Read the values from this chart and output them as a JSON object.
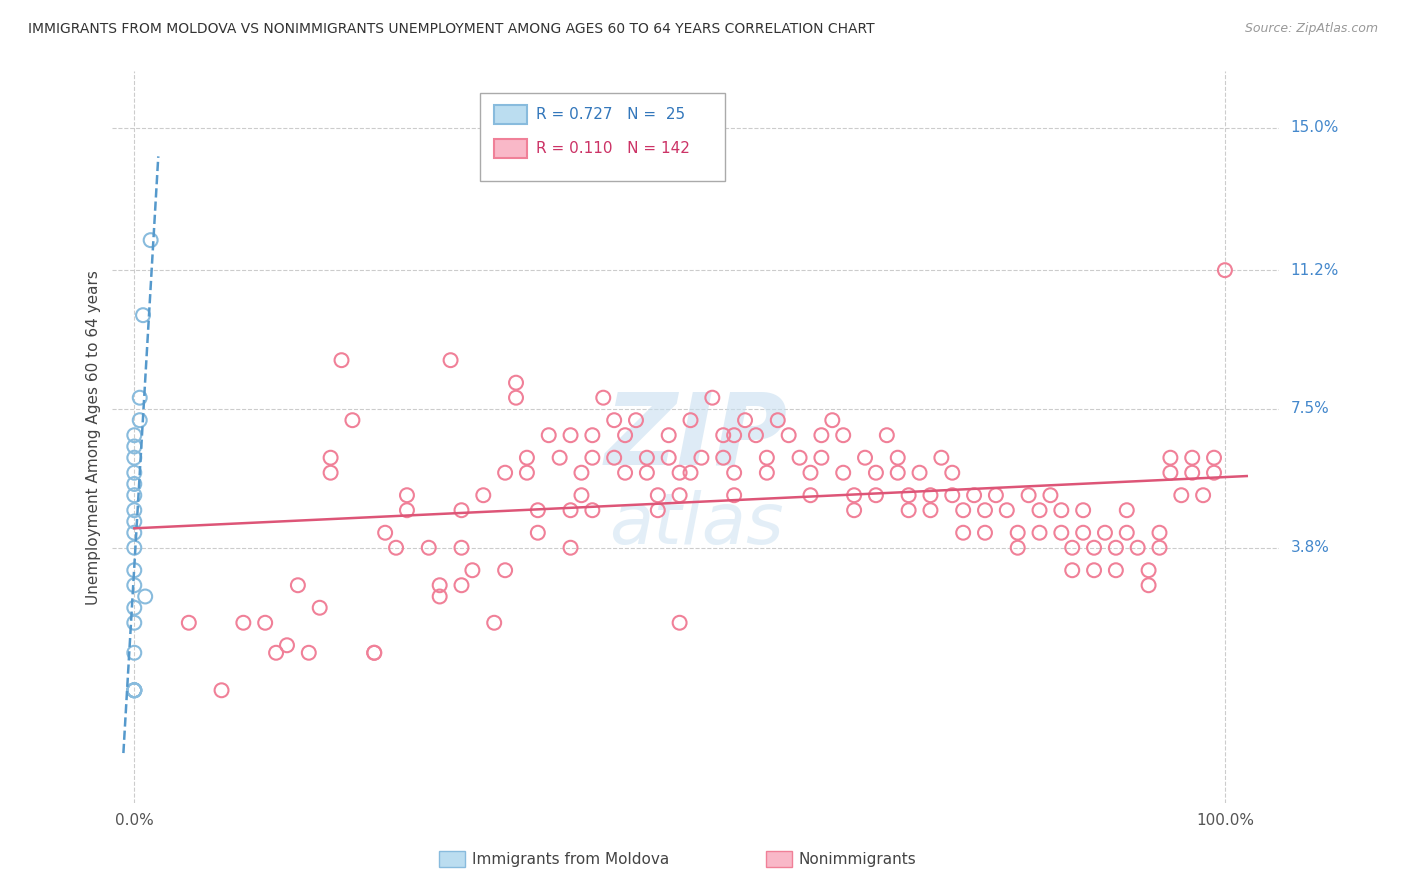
{
  "title": "IMMIGRANTS FROM MOLDOVA VS NONIMMIGRANTS UNEMPLOYMENT AMONG AGES 60 TO 64 YEARS CORRELATION CHART",
  "source": "Source: ZipAtlas.com",
  "ylabel": "Unemployment Among Ages 60 to 64 years",
  "xlim": [
    -0.02,
    1.05
  ],
  "ylim": [
    -0.03,
    0.165
  ],
  "ytick_labels": [
    "3.8%",
    "7.5%",
    "11.2%",
    "15.0%"
  ],
  "ytick_positions": [
    0.038,
    0.075,
    0.112,
    0.15
  ],
  "r_moldova": 0.727,
  "n_moldova": 25,
  "r_nonimm": 0.11,
  "n_nonimm": 142,
  "moldova_color": "#88bbdd",
  "nonimm_color": "#f08098",
  "trendline_moldova_color": "#5599cc",
  "trendline_nonimm_color": "#dd5577",
  "moldova_points": [
    [
      0.0,
      0.0
    ],
    [
      0.0,
      0.0
    ],
    [
      0.0,
      0.0
    ],
    [
      0.0,
      0.0
    ],
    [
      0.0,
      0.0
    ],
    [
      0.0,
      0.01
    ],
    [
      0.0,
      0.018
    ],
    [
      0.0,
      0.022
    ],
    [
      0.0,
      0.028
    ],
    [
      0.0,
      0.032
    ],
    [
      0.0,
      0.038
    ],
    [
      0.0,
      0.042
    ],
    [
      0.0,
      0.045
    ],
    [
      0.0,
      0.048
    ],
    [
      0.0,
      0.052
    ],
    [
      0.0,
      0.055
    ],
    [
      0.0,
      0.058
    ],
    [
      0.0,
      0.062
    ],
    [
      0.0,
      0.065
    ],
    [
      0.0,
      0.068
    ],
    [
      0.005,
      0.072
    ],
    [
      0.005,
      0.078
    ],
    [
      0.008,
      0.1
    ],
    [
      0.01,
      0.025
    ],
    [
      0.015,
      0.12
    ]
  ],
  "nonimm_points": [
    [
      0.05,
      0.018
    ],
    [
      0.08,
      0.0
    ],
    [
      0.1,
      0.018
    ],
    [
      0.12,
      0.018
    ],
    [
      0.13,
      0.01
    ],
    [
      0.14,
      0.012
    ],
    [
      0.15,
      0.028
    ],
    [
      0.16,
      0.01
    ],
    [
      0.17,
      0.022
    ],
    [
      0.18,
      0.062
    ],
    [
      0.18,
      0.058
    ],
    [
      0.19,
      0.088
    ],
    [
      0.2,
      0.072
    ],
    [
      0.22,
      0.01
    ],
    [
      0.22,
      0.01
    ],
    [
      0.23,
      0.042
    ],
    [
      0.24,
      0.038
    ],
    [
      0.25,
      0.052
    ],
    [
      0.25,
      0.048
    ],
    [
      0.27,
      0.038
    ],
    [
      0.28,
      0.028
    ],
    [
      0.28,
      0.025
    ],
    [
      0.29,
      0.088
    ],
    [
      0.3,
      0.048
    ],
    [
      0.3,
      0.038
    ],
    [
      0.3,
      0.028
    ],
    [
      0.31,
      0.032
    ],
    [
      0.32,
      0.052
    ],
    [
      0.33,
      0.018
    ],
    [
      0.34,
      0.032
    ],
    [
      0.34,
      0.058
    ],
    [
      0.35,
      0.078
    ],
    [
      0.35,
      0.082
    ],
    [
      0.36,
      0.062
    ],
    [
      0.36,
      0.058
    ],
    [
      0.37,
      0.048
    ],
    [
      0.37,
      0.042
    ],
    [
      0.38,
      0.068
    ],
    [
      0.39,
      0.062
    ],
    [
      0.4,
      0.068
    ],
    [
      0.4,
      0.048
    ],
    [
      0.4,
      0.038
    ],
    [
      0.41,
      0.058
    ],
    [
      0.41,
      0.052
    ],
    [
      0.42,
      0.068
    ],
    [
      0.42,
      0.062
    ],
    [
      0.42,
      0.048
    ],
    [
      0.43,
      0.078
    ],
    [
      0.44,
      0.072
    ],
    [
      0.44,
      0.062
    ],
    [
      0.45,
      0.068
    ],
    [
      0.45,
      0.058
    ],
    [
      0.46,
      0.072
    ],
    [
      0.47,
      0.062
    ],
    [
      0.47,
      0.058
    ],
    [
      0.48,
      0.052
    ],
    [
      0.48,
      0.048
    ],
    [
      0.49,
      0.068
    ],
    [
      0.49,
      0.062
    ],
    [
      0.5,
      0.058
    ],
    [
      0.5,
      0.052
    ],
    [
      0.5,
      0.018
    ],
    [
      0.51,
      0.072
    ],
    [
      0.51,
      0.058
    ],
    [
      0.52,
      0.062
    ],
    [
      0.53,
      0.078
    ],
    [
      0.54,
      0.068
    ],
    [
      0.54,
      0.062
    ],
    [
      0.55,
      0.068
    ],
    [
      0.55,
      0.058
    ],
    [
      0.55,
      0.052
    ],
    [
      0.56,
      0.072
    ],
    [
      0.57,
      0.068
    ],
    [
      0.58,
      0.062
    ],
    [
      0.58,
      0.058
    ],
    [
      0.59,
      0.072
    ],
    [
      0.6,
      0.068
    ],
    [
      0.61,
      0.062
    ],
    [
      0.62,
      0.058
    ],
    [
      0.62,
      0.052
    ],
    [
      0.63,
      0.068
    ],
    [
      0.63,
      0.062
    ],
    [
      0.64,
      0.072
    ],
    [
      0.65,
      0.068
    ],
    [
      0.65,
      0.058
    ],
    [
      0.66,
      0.052
    ],
    [
      0.66,
      0.048
    ],
    [
      0.67,
      0.062
    ],
    [
      0.68,
      0.058
    ],
    [
      0.68,
      0.052
    ],
    [
      0.69,
      0.068
    ],
    [
      0.7,
      0.062
    ],
    [
      0.7,
      0.058
    ],
    [
      0.71,
      0.052
    ],
    [
      0.71,
      0.048
    ],
    [
      0.72,
      0.058
    ],
    [
      0.73,
      0.052
    ],
    [
      0.73,
      0.048
    ],
    [
      0.74,
      0.062
    ],
    [
      0.75,
      0.058
    ],
    [
      0.75,
      0.052
    ],
    [
      0.76,
      0.048
    ],
    [
      0.76,
      0.042
    ],
    [
      0.77,
      0.052
    ],
    [
      0.78,
      0.048
    ],
    [
      0.78,
      0.042
    ],
    [
      0.79,
      0.052
    ],
    [
      0.8,
      0.048
    ],
    [
      0.81,
      0.042
    ],
    [
      0.81,
      0.038
    ],
    [
      0.82,
      0.052
    ],
    [
      0.83,
      0.048
    ],
    [
      0.83,
      0.042
    ],
    [
      0.84,
      0.052
    ],
    [
      0.85,
      0.048
    ],
    [
      0.85,
      0.042
    ],
    [
      0.86,
      0.038
    ],
    [
      0.86,
      0.032
    ],
    [
      0.87,
      0.048
    ],
    [
      0.87,
      0.042
    ],
    [
      0.88,
      0.038
    ],
    [
      0.88,
      0.032
    ],
    [
      0.89,
      0.042
    ],
    [
      0.9,
      0.038
    ],
    [
      0.9,
      0.032
    ],
    [
      0.91,
      0.048
    ],
    [
      0.91,
      0.042
    ],
    [
      0.92,
      0.038
    ],
    [
      0.93,
      0.032
    ],
    [
      0.93,
      0.028
    ],
    [
      0.94,
      0.042
    ],
    [
      0.94,
      0.038
    ],
    [
      0.95,
      0.062
    ],
    [
      0.95,
      0.058
    ],
    [
      0.96,
      0.052
    ],
    [
      0.97,
      0.062
    ],
    [
      0.97,
      0.058
    ],
    [
      0.98,
      0.052
    ],
    [
      0.99,
      0.062
    ],
    [
      0.99,
      0.058
    ],
    [
      1.0,
      0.112
    ]
  ]
}
